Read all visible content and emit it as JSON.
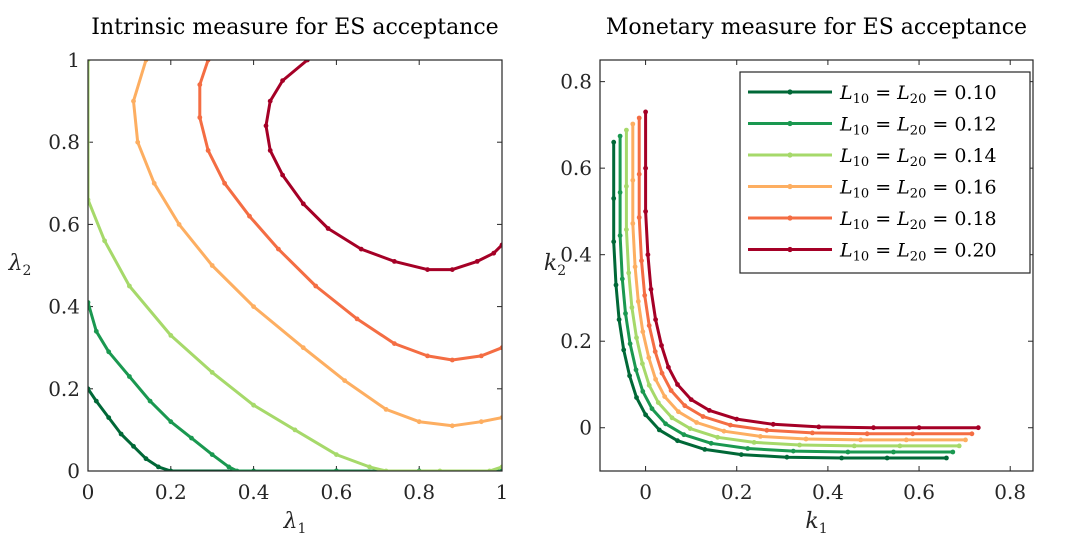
{
  "chart_data": [
    {
      "type": "line",
      "title": "Intrinsic measure for ES acceptance",
      "xlabel": "λ",
      "xlabel_sub": "1",
      "ylabel": "λ",
      "ylabel_sub": "2",
      "xlim": [
        0,
        1
      ],
      "ylim": [
        0,
        1
      ],
      "xticks": [
        "0",
        "0.2",
        "0.4",
        "0.6",
        "0.8",
        "1"
      ],
      "yticks": [
        "0",
        "0.2",
        "0.4",
        "0.6",
        "0.8",
        "1"
      ],
      "series": [
        {
          "color": "#006837",
          "points": [
            [
              0,
              0.2
            ],
            [
              0.02,
              0.17
            ],
            [
              0.05,
              0.13
            ],
            [
              0.08,
              0.09
            ],
            [
              0.11,
              0.06
            ],
            [
              0.14,
              0.03
            ],
            [
              0.17,
              0.01
            ],
            [
              0.2,
              0
            ],
            [
              0.4,
              0
            ],
            [
              0.6,
              0
            ],
            [
              0.8,
              0
            ],
            [
              1,
              0
            ]
          ]
        },
        {
          "color": "#1a9850",
          "points": [
            [
              0,
              0.41
            ],
            [
              0.02,
              0.34
            ],
            [
              0.05,
              0.29
            ],
            [
              0.1,
              0.23
            ],
            [
              0.15,
              0.17
            ],
            [
              0.2,
              0.12
            ],
            [
              0.25,
              0.08
            ],
            [
              0.3,
              0.04
            ],
            [
              0.34,
              0.01
            ],
            [
              0.36,
              0
            ],
            [
              0.6,
              0
            ],
            [
              0.8,
              0
            ],
            [
              1,
              0
            ]
          ]
        },
        {
          "color": "#a6d96a",
          "points": [
            [
              0,
              1
            ],
            [
              0,
              0.66
            ],
            [
              0.04,
              0.56
            ],
            [
              0.1,
              0.45
            ],
            [
              0.2,
              0.33
            ],
            [
              0.3,
              0.24
            ],
            [
              0.4,
              0.16
            ],
            [
              0.5,
              0.1
            ],
            [
              0.6,
              0.04
            ],
            [
              0.68,
              0.01
            ],
            [
              0.72,
              0
            ],
            [
              0.85,
              0
            ],
            [
              0.97,
              0
            ],
            [
              1,
              0.01
            ]
          ]
        },
        {
          "color": "#fdae61",
          "points": [
            [
              0.14,
              1
            ],
            [
              0.11,
              0.9
            ],
            [
              0.12,
              0.8
            ],
            [
              0.16,
              0.7
            ],
            [
              0.22,
              0.6
            ],
            [
              0.3,
              0.5
            ],
            [
              0.4,
              0.4
            ],
            [
              0.52,
              0.3
            ],
            [
              0.62,
              0.22
            ],
            [
              0.72,
              0.15
            ],
            [
              0.8,
              0.12
            ],
            [
              0.88,
              0.11
            ],
            [
              0.95,
              0.12
            ],
            [
              1,
              0.13
            ]
          ]
        },
        {
          "color": "#f46d43",
          "points": [
            [
              0.29,
              1
            ],
            [
              0.27,
              0.94
            ],
            [
              0.27,
              0.86
            ],
            [
              0.29,
              0.78
            ],
            [
              0.33,
              0.7
            ],
            [
              0.39,
              0.62
            ],
            [
              0.46,
              0.54
            ],
            [
              0.55,
              0.45
            ],
            [
              0.65,
              0.37
            ],
            [
              0.74,
              0.31
            ],
            [
              0.82,
              0.28
            ],
            [
              0.88,
              0.27
            ],
            [
              0.95,
              0.28
            ],
            [
              1,
              0.3
            ]
          ]
        },
        {
          "color": "#a50026",
          "points": [
            [
              0.53,
              1
            ],
            [
              0.47,
              0.95
            ],
            [
              0.44,
              0.9
            ],
            [
              0.43,
              0.84
            ],
            [
              0.44,
              0.78
            ],
            [
              0.47,
              0.72
            ],
            [
              0.52,
              0.65
            ],
            [
              0.58,
              0.59
            ],
            [
              0.66,
              0.54
            ],
            [
              0.74,
              0.51
            ],
            [
              0.82,
              0.49
            ],
            [
              0.88,
              0.49
            ],
            [
              0.94,
              0.51
            ],
            [
              0.98,
              0.53
            ],
            [
              1,
              0.55
            ]
          ]
        }
      ]
    },
    {
      "type": "line",
      "title": "Monetary measure for ES acceptance",
      "xlabel": "k",
      "xlabel_sub": "1",
      "ylabel": "k",
      "ylabel_sub": "2",
      "xlim": [
        -0.1,
        0.85
      ],
      "ylim": [
        -0.1,
        0.85
      ],
      "xticks": [
        "0",
        "0.2",
        "0.4",
        "0.6",
        "0.8"
      ],
      "yticks": [
        "0",
        "0.2",
        "0.4",
        "0.6",
        "0.8"
      ],
      "legend_position": "top-right",
      "series": [
        {
          "name": "L10 = L20 = 0.10",
          "color": "#006837",
          "offset": -0.07
        },
        {
          "name": "L10 = L20 = 0.12",
          "color": "#1a9850",
          "offset": -0.056
        },
        {
          "name": "L10 = L20 = 0.14",
          "color": "#a6d96a",
          "offset": -0.042
        },
        {
          "name": "L10 = L20 = 0.16",
          "color": "#fdae61",
          "offset": -0.028
        },
        {
          "name": "L10 = L20 = 0.18",
          "color": "#f46d43",
          "offset": -0.014
        },
        {
          "name": "L10 = L20 = 0.20",
          "color": "#a50026",
          "offset": 0.0
        }
      ],
      "base_curve": [
        [
          0,
          0.73
        ],
        [
          0,
          0.6
        ],
        [
          0,
          0.5
        ],
        [
          0.005,
          0.4
        ],
        [
          0.012,
          0.32
        ],
        [
          0.022,
          0.25
        ],
        [
          0.035,
          0.19
        ],
        [
          0.05,
          0.14
        ],
        [
          0.07,
          0.1
        ],
        [
          0.1,
          0.065
        ],
        [
          0.14,
          0.04
        ],
        [
          0.2,
          0.02
        ],
        [
          0.28,
          0.008
        ],
        [
          0.38,
          0.002
        ],
        [
          0.5,
          0
        ],
        [
          0.6,
          0
        ],
        [
          0.73,
          0
        ]
      ],
      "legend_entries": [
        {
          "a": "L",
          "a_sub": "10",
          "b": "L",
          "b_sub": "20",
          "value": "0.10"
        },
        {
          "a": "L",
          "a_sub": "10",
          "b": "L",
          "b_sub": "20",
          "value": "0.12"
        },
        {
          "a": "L",
          "a_sub": "10",
          "b": "L",
          "b_sub": "20",
          "value": "0.14"
        },
        {
          "a": "L",
          "a_sub": "10",
          "b": "L",
          "b_sub": "20",
          "value": "0.16"
        },
        {
          "a": "L",
          "a_sub": "10",
          "b": "L",
          "b_sub": "20",
          "value": "0.18"
        },
        {
          "a": "L",
          "a_sub": "10",
          "b": "L",
          "b_sub": "20",
          "value": "0.20"
        }
      ]
    }
  ]
}
